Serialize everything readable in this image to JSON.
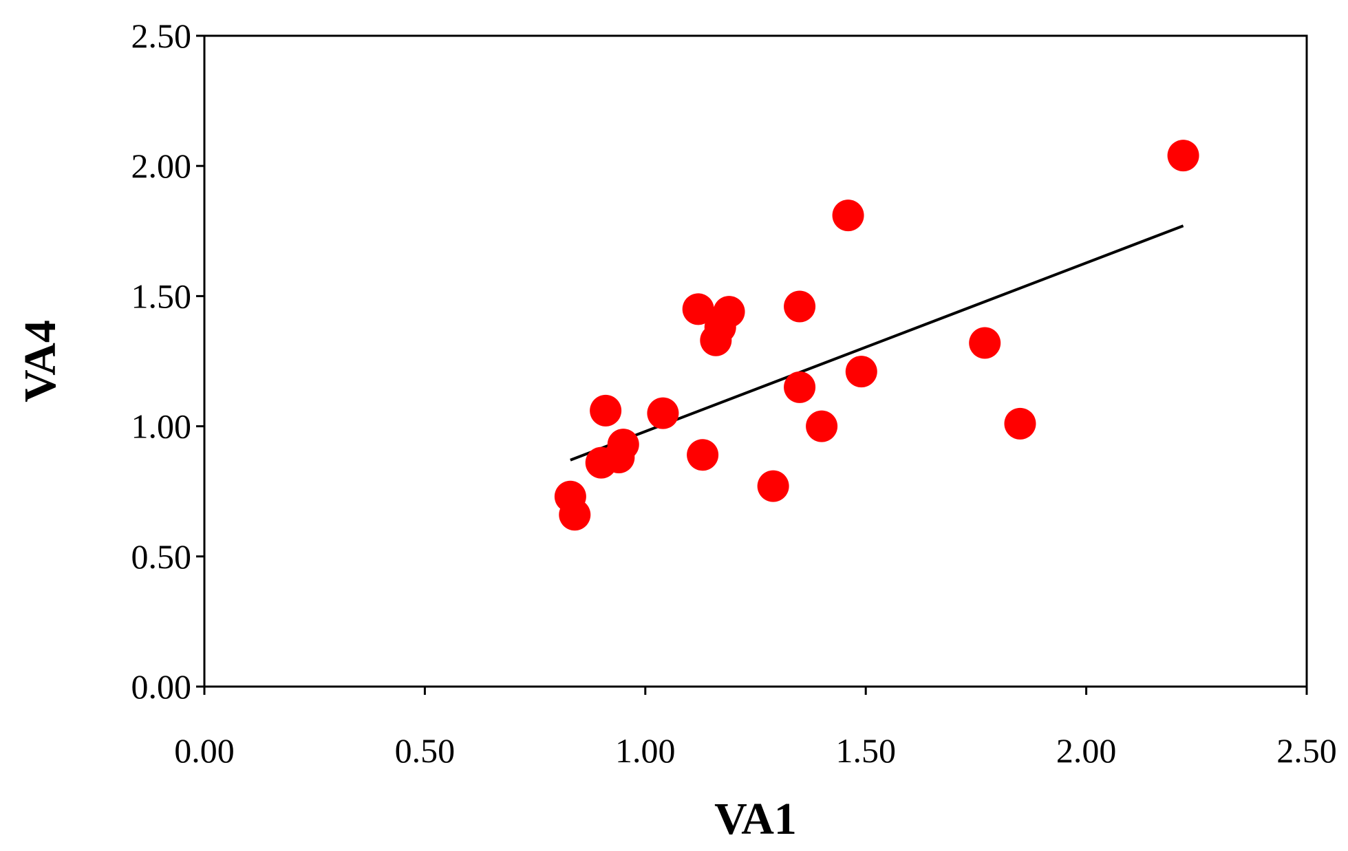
{
  "chart_data": {
    "type": "scatter",
    "title": "",
    "xlabel": "VA1",
    "ylabel": "VA4",
    "xlim": [
      0,
      2.5
    ],
    "ylim": [
      0,
      2.5
    ],
    "x_ticks": [
      "0.00",
      "0.50",
      "1.00",
      "1.50",
      "2.00",
      "2.50"
    ],
    "y_ticks": [
      "0.00",
      "0.50",
      "1.00",
      "1.50",
      "2.00",
      "2.50"
    ],
    "grid": false,
    "legend": "none",
    "marker_color": "#ff0000",
    "line_color": "#000000",
    "series": [
      {
        "type": "scatter",
        "points": [
          {
            "x": 0.83,
            "y": 0.73
          },
          {
            "x": 0.84,
            "y": 0.66
          },
          {
            "x": 0.9,
            "y": 0.86
          },
          {
            "x": 0.91,
            "y": 1.06
          },
          {
            "x": 0.94,
            "y": 0.88
          },
          {
            "x": 0.95,
            "y": 0.93
          },
          {
            "x": 1.04,
            "y": 1.05
          },
          {
            "x": 1.12,
            "y": 1.45
          },
          {
            "x": 1.13,
            "y": 0.89
          },
          {
            "x": 1.16,
            "y": 1.33
          },
          {
            "x": 1.17,
            "y": 1.38
          },
          {
            "x": 1.19,
            "y": 1.44
          },
          {
            "x": 1.29,
            "y": 0.77
          },
          {
            "x": 1.35,
            "y": 1.46
          },
          {
            "x": 1.35,
            "y": 1.15
          },
          {
            "x": 1.4,
            "y": 1.0
          },
          {
            "x": 1.46,
            "y": 1.81
          },
          {
            "x": 1.49,
            "y": 1.21
          },
          {
            "x": 1.77,
            "y": 1.32
          },
          {
            "x": 1.85,
            "y": 1.01
          },
          {
            "x": 2.22,
            "y": 2.04
          }
        ]
      },
      {
        "type": "line",
        "points": [
          {
            "x": 0.83,
            "y": 0.87
          },
          {
            "x": 2.22,
            "y": 1.77
          }
        ]
      }
    ]
  }
}
